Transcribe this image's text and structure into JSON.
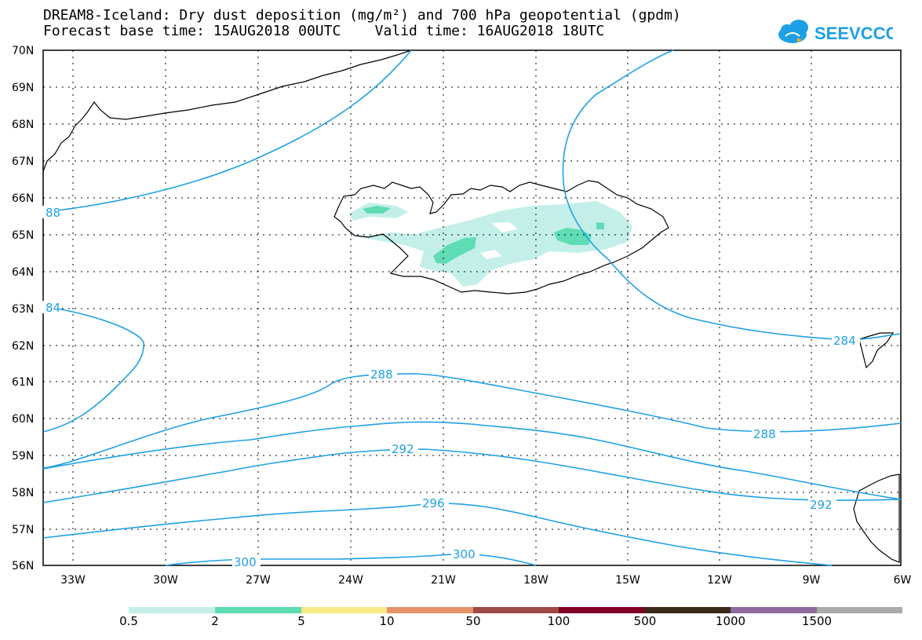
{
  "header": {
    "title_line1": "DREAM8-Iceland: Dry dust deposition (mg/m²) and 700 hPa geopotential (gpdm)",
    "title_line2": "Forecast base time: 15AUG2018 00UTC    Valid time: 16AUG2018 18UTC",
    "logo_text": "SEEVCCC"
  },
  "map": {
    "lat_labels": [
      "70N",
      "69N",
      "68N",
      "67N",
      "66N",
      "65N",
      "64N",
      "63N",
      "62N",
      "61N",
      "60N",
      "59N",
      "58N",
      "57N",
      "56N"
    ],
    "lon_labels": [
      "33W",
      "30W",
      "27W",
      "24W",
      "21W",
      "18W",
      "15W",
      "12W",
      "9W",
      "6W"
    ],
    "contour_labels": [
      "88",
      "84",
      "284",
      "288",
      "288",
      "292",
      "292",
      "296",
      "300",
      "300"
    ],
    "contour_color": "#1ea0e6",
    "dust_colors": {
      "0.5-2": "#c3efe8",
      "2-5": "#5fdcb4"
    }
  },
  "colorbar": {
    "labels": [
      "0.5",
      "2",
      "5",
      "10",
      "50",
      "100",
      "500",
      "1000",
      "1500"
    ],
    "colors": [
      "#c3efe8",
      "#5fdcb4",
      "#f7e985",
      "#e9936b",
      "#a04a45",
      "#800026",
      "#3a2a1c",
      "#8c6a9c",
      "#aaaaaa"
    ]
  }
}
